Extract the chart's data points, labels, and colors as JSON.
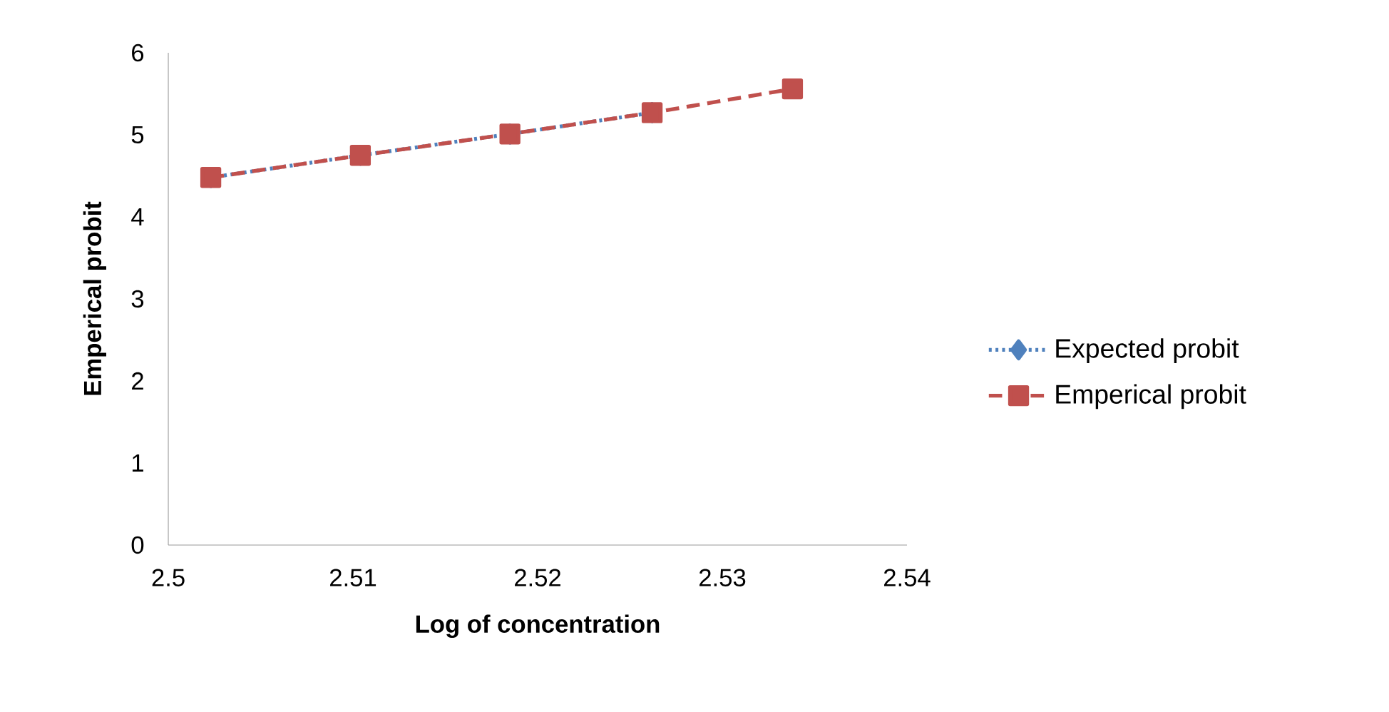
{
  "chart_data": {
    "type": "line",
    "xlabel": "Log of concentration",
    "ylabel": "Emperical probit",
    "x": [
      2.5023,
      2.5104,
      2.5185,
      2.5262,
      2.5338
    ],
    "series": [
      {
        "name": "Expected probit",
        "color": "#4f81bd",
        "marker": "diamond",
        "line_style": "dotted",
        "values": [
          4.48,
          4.75,
          5.01,
          5.27,
          null
        ]
      },
      {
        "name": "Emperical probit",
        "color": "#c0504d",
        "marker": "square",
        "line_style": "dashed",
        "values": [
          4.48,
          4.75,
          5.01,
          5.27,
          5.56
        ]
      }
    ],
    "xlim": [
      2.5,
      2.54
    ],
    "xticks": [
      2.5,
      2.51,
      2.52,
      2.53,
      2.54
    ],
    "ylim": [
      0,
      6
    ],
    "yticks": [
      0,
      1,
      2,
      3,
      4,
      5,
      6
    ],
    "grid": false,
    "legend": "right"
  }
}
